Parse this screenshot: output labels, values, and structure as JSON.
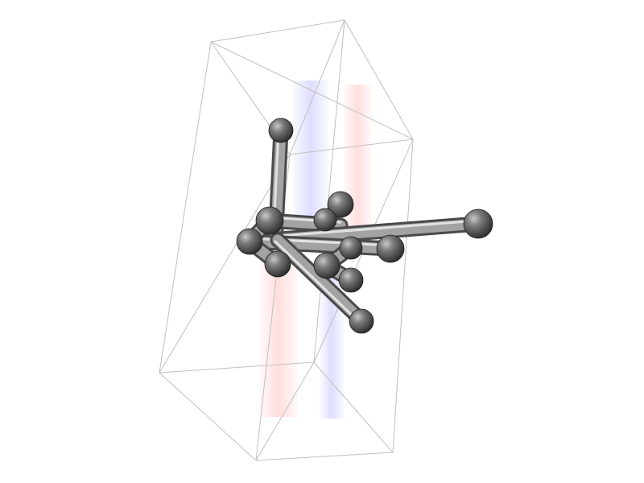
{
  "scene": {
    "background_color": "#ffffff",
    "cell_edge_color": "#c0c0c0",
    "atom_color": "#5a5a5a",
    "bond_color": "#8e8e8e",
    "axis_colors": [
      "#0000ff",
      "#ff0000"
    ]
  }
}
